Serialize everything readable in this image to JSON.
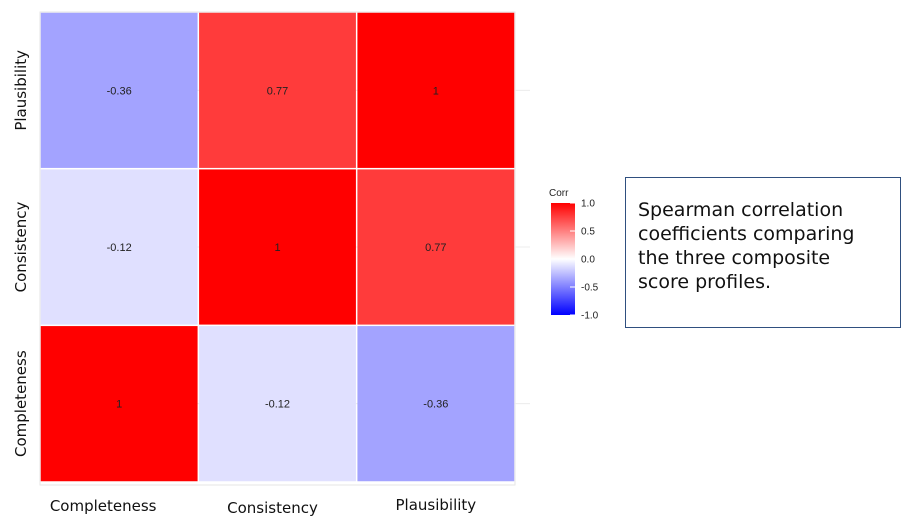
{
  "chart_data": {
    "type": "heatmap",
    "x_categories": [
      "Completeness",
      "Consistency",
      "Plausibility"
    ],
    "y_categories": [
      "Completeness",
      "Consistency",
      "Plausibility"
    ],
    "matrix": [
      {
        "x": "Completeness",
        "y": "Plausibility",
        "value": -0.36,
        "label": "-0.36"
      },
      {
        "x": "Consistency",
        "y": "Plausibility",
        "value": 0.77,
        "label": "0.77"
      },
      {
        "x": "Plausibility",
        "y": "Plausibility",
        "value": 1,
        "label": "1"
      },
      {
        "x": "Completeness",
        "y": "Consistency",
        "value": -0.12,
        "label": "-0.12"
      },
      {
        "x": "Consistency",
        "y": "Consistency",
        "value": 1,
        "label": "1"
      },
      {
        "x": "Plausibility",
        "y": "Consistency",
        "value": 0.77,
        "label": "0.77"
      },
      {
        "x": "Completeness",
        "y": "Completeness",
        "value": 1,
        "label": "1"
      },
      {
        "x": "Consistency",
        "y": "Completeness",
        "value": -0.12,
        "label": "-0.12"
      },
      {
        "x": "Plausibility",
        "y": "Completeness",
        "value": -0.36,
        "label": "-0.36"
      }
    ],
    "legend": {
      "title": "Corr",
      "ticks": [
        "1.0",
        "0.5",
        "0.0",
        "-0.5",
        "-1.0"
      ],
      "range": [
        -1,
        1
      ],
      "colors": {
        "low": "#0000ff",
        "mid": "#ffffff",
        "high": "#ff0000"
      },
      "placement": "right"
    }
  },
  "caption": "Spearman correlation coefficients comparing the three composite score profiles."
}
